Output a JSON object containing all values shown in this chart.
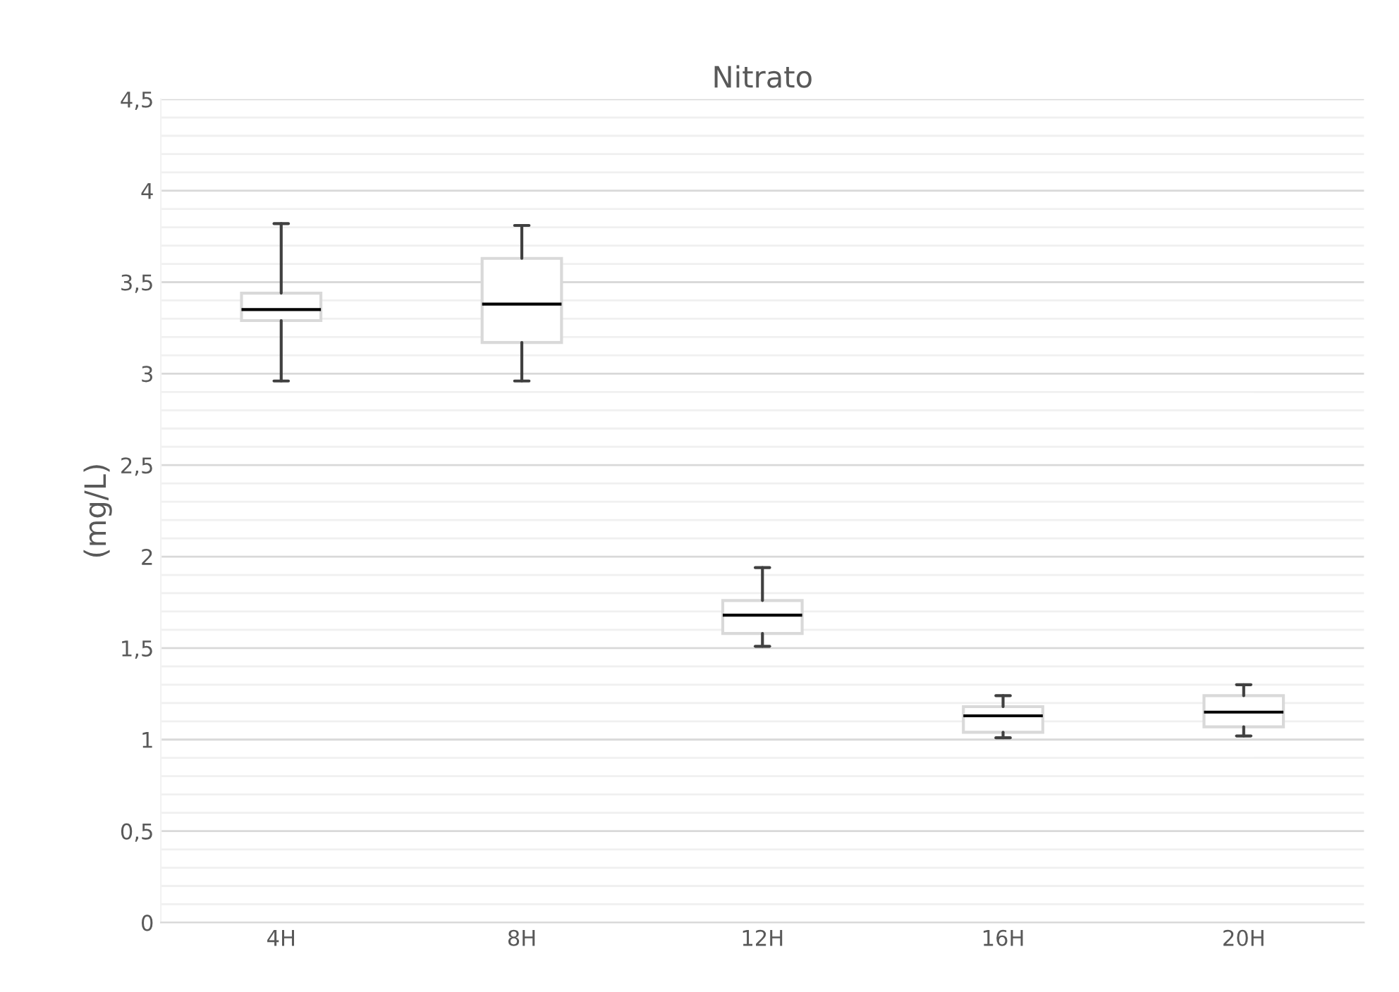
{
  "chart_data": {
    "type": "box",
    "title": "Nitrato",
    "ylabel": "(mg/L)",
    "categories": [
      "4H",
      "8H",
      "12H",
      "16H",
      "20H"
    ],
    "boxes": [
      {
        "low": 2.96,
        "q1": 3.29,
        "median": 3.35,
        "q3": 3.44,
        "high": 3.82
      },
      {
        "low": 2.96,
        "q1": 3.17,
        "median": 3.38,
        "q3": 3.63,
        "high": 3.81
      },
      {
        "low": 1.51,
        "q1": 1.58,
        "median": 1.68,
        "q3": 1.76,
        "high": 1.94
      },
      {
        "low": 1.01,
        "q1": 1.04,
        "median": 1.13,
        "q3": 1.18,
        "high": 1.24
      },
      {
        "low": 1.02,
        "q1": 1.07,
        "median": 1.15,
        "q3": 1.24,
        "high": 1.3
      }
    ],
    "color": "#d9d9d9",
    "ylim": [
      0,
      4.5
    ],
    "yticks": [
      {
        "value": 0,
        "label": "0"
      },
      {
        "value": 0.5,
        "label": "0,5"
      },
      {
        "value": 1,
        "label": "1"
      },
      {
        "value": 1.5,
        "label": "1,5"
      },
      {
        "value": 2,
        "label": "2"
      },
      {
        "value": 2.5,
        "label": "2,5"
      },
      {
        "value": 3,
        "label": "3"
      },
      {
        "value": 3.5,
        "label": "3,5"
      },
      {
        "value": 4,
        "label": "4"
      },
      {
        "value": 4.5,
        "label": "4,5"
      }
    ],
    "grid": "y"
  }
}
